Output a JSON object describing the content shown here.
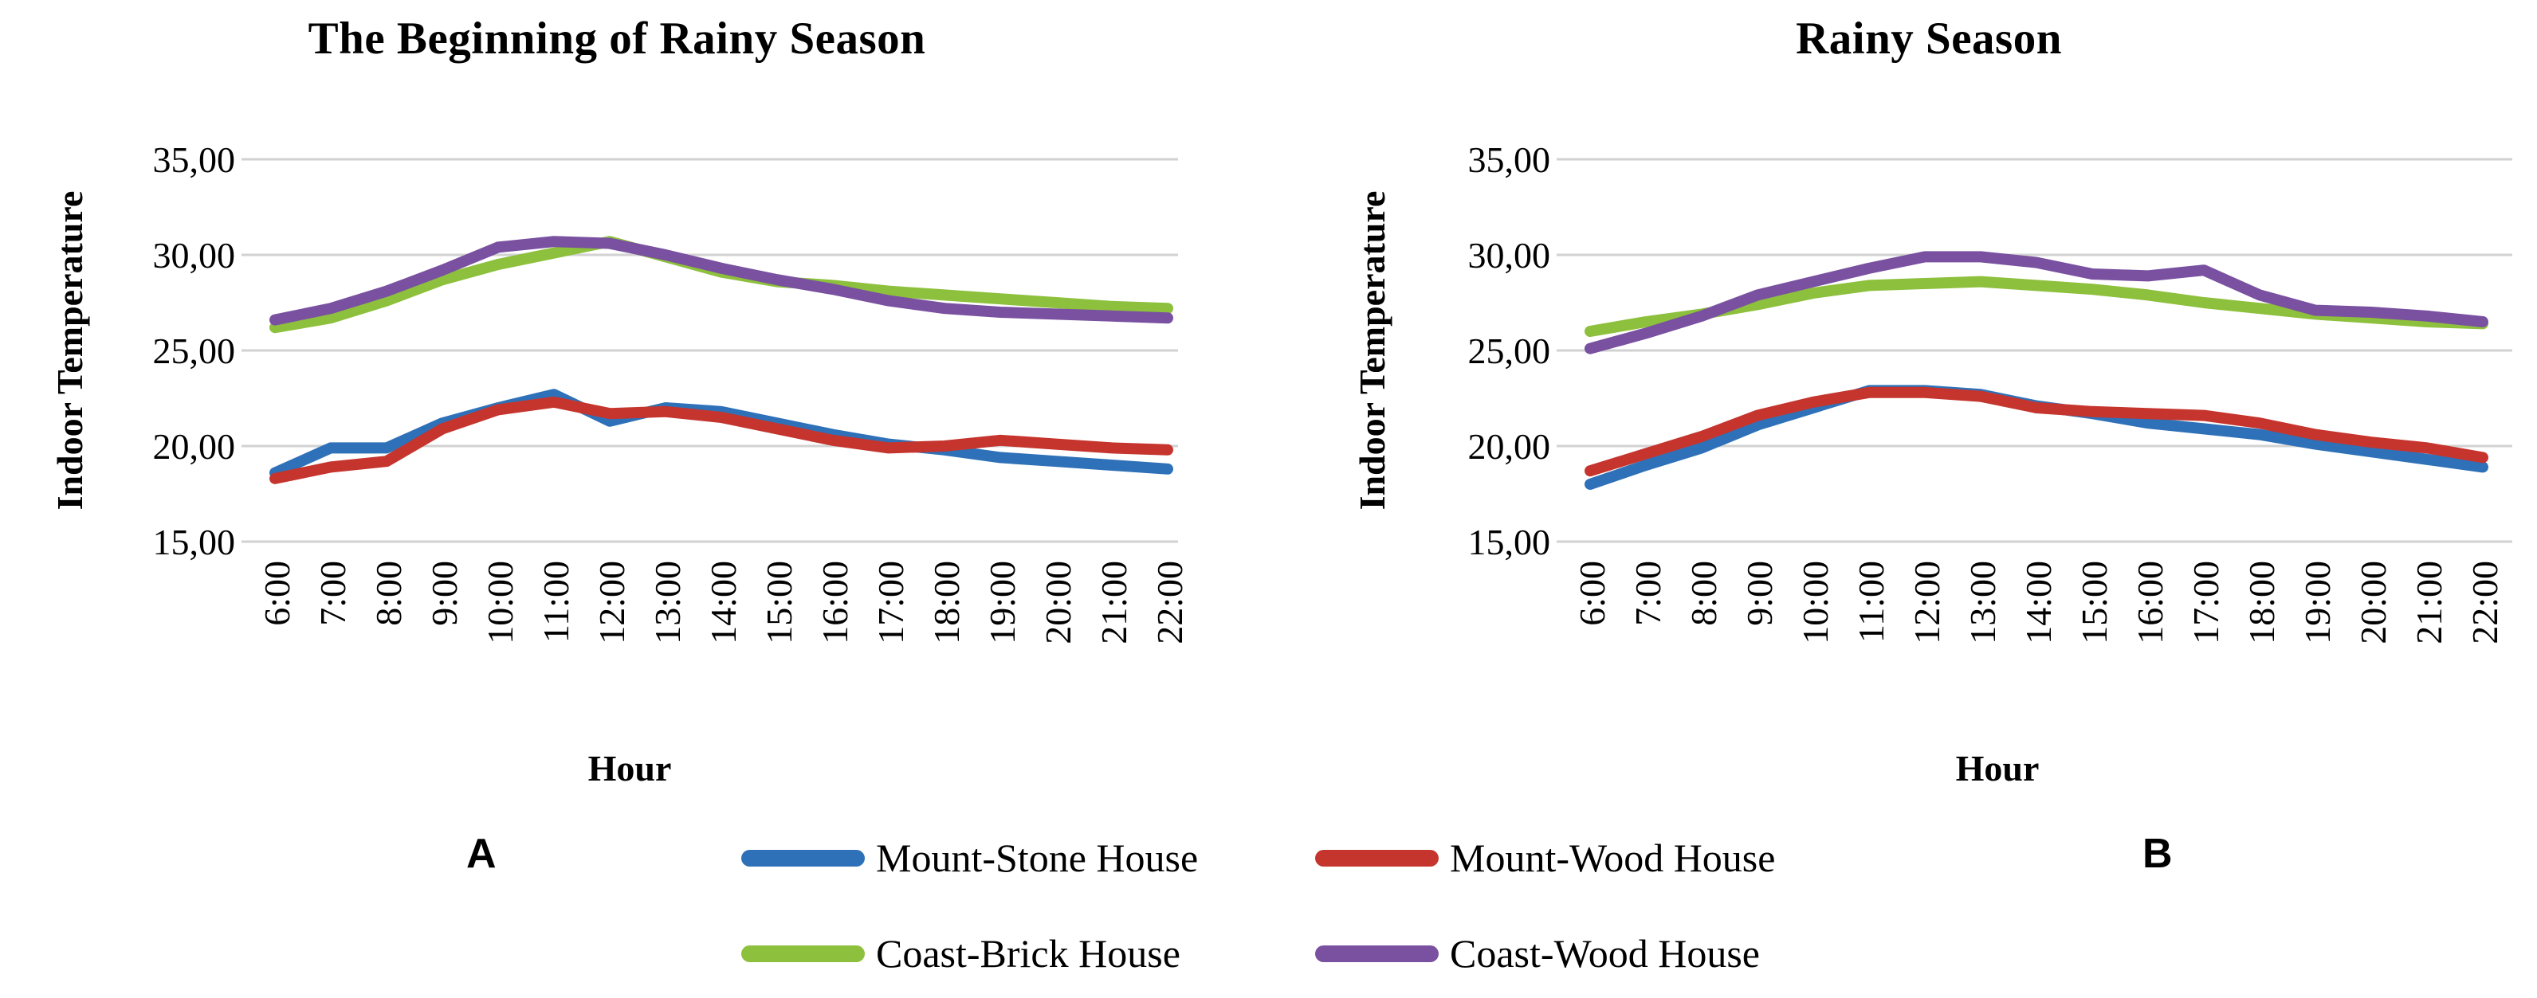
{
  "colors": {
    "mount_stone_blue": "#2e71b8",
    "mount_wood_red": "#c5352e",
    "coast_brick_green": "#8dc03c",
    "coast_wood_purple": "#7951a0",
    "gridline": "#d2d2d2",
    "text": "#000000"
  },
  "panels": {
    "a": "A",
    "b": "B"
  },
  "legend": {
    "position": "bottom-center, shared, two rows",
    "items": [
      {
        "label": "Mount-Stone House",
        "color": "#2e71b8"
      },
      {
        "label": "Mount-Wood House",
        "color": "#c5352e"
      },
      {
        "label": "Coast-Brick House",
        "color": "#8dc03c"
      },
      {
        "label": "Coast-Wood House",
        "color": "#7951a0"
      }
    ]
  },
  "chart_data": [
    {
      "type": "line",
      "title": "The Beginning of Rainy Season",
      "xlabel": "Hour",
      "ylabel": "Indoor Temperature",
      "ylim": [
        15,
        35
      ],
      "yticks": [
        "35,00",
        "30,00",
        "25,00",
        "20,00",
        "15,00"
      ],
      "grid": true,
      "categories": [
        "6:00",
        "7:00",
        "8:00",
        "9:00",
        "10:00",
        "11:00",
        "12:00",
        "13:00",
        "14:00",
        "15:00",
        "16:00",
        "17:00",
        "18:00",
        "19:00",
        "20:00",
        "21:00",
        "22:00"
      ],
      "series": [
        {
          "name": "Mount-Stone House",
          "color": "#2e71b8",
          "values": [
            18.6,
            19.9,
            19.9,
            21.2,
            22.0,
            22.7,
            21.3,
            22.0,
            21.8,
            21.2,
            20.6,
            20.1,
            19.8,
            19.4,
            19.2,
            19.0,
            18.8
          ]
        },
        {
          "name": "Mount-Wood House",
          "color": "#c5352e",
          "values": [
            18.3,
            18.9,
            19.2,
            20.9,
            21.9,
            22.3,
            21.7,
            21.8,
            21.5,
            20.9,
            20.3,
            19.9,
            20.0,
            20.3,
            20.1,
            19.9,
            19.8
          ]
        },
        {
          "name": "Coast-Brick House",
          "color": "#8dc03c",
          "values": [
            26.2,
            26.7,
            27.6,
            28.7,
            29.5,
            30.1,
            30.7,
            29.9,
            29.1,
            28.6,
            28.4,
            28.1,
            27.9,
            27.7,
            27.5,
            27.3,
            27.2
          ]
        },
        {
          "name": "Coast-Wood House",
          "color": "#7951a0",
          "values": [
            26.6,
            27.2,
            28.1,
            29.2,
            30.4,
            30.7,
            30.6,
            30.0,
            29.3,
            28.7,
            28.2,
            27.6,
            27.2,
            27.0,
            26.9,
            26.8,
            26.7
          ]
        }
      ]
    },
    {
      "type": "line",
      "title": "Rainy Season",
      "xlabel": "Hour",
      "ylabel": "Indoor Temperature",
      "ylim": [
        15,
        35
      ],
      "yticks": [
        "35,00",
        "30,00",
        "25,00",
        "20,00",
        "15,00"
      ],
      "grid": true,
      "categories": [
        "6:00",
        "7:00",
        "8:00",
        "9:00",
        "10:00",
        "11:00",
        "12:00",
        "13:00",
        "14:00",
        "15:00",
        "16:00",
        "17:00",
        "18:00",
        "19:00",
        "20:00",
        "21:00",
        "22:00"
      ],
      "series": [
        {
          "name": "Mount-Stone House",
          "color": "#2e71b8",
          "values": [
            18.0,
            19.0,
            19.9,
            21.1,
            22.0,
            22.9,
            22.9,
            22.7,
            22.1,
            21.7,
            21.2,
            20.9,
            20.6,
            20.1,
            19.7,
            19.3,
            18.9
          ]
        },
        {
          "name": "Mount-Wood House",
          "color": "#c5352e",
          "values": [
            18.7,
            19.6,
            20.5,
            21.6,
            22.3,
            22.8,
            22.8,
            22.6,
            22.0,
            21.8,
            21.7,
            21.6,
            21.2,
            20.6,
            20.2,
            19.9,
            19.4
          ]
        },
        {
          "name": "Coast-Brick House",
          "color": "#8dc03c",
          "values": [
            26.0,
            26.5,
            26.9,
            27.4,
            28.0,
            28.4,
            28.5,
            28.6,
            28.4,
            28.2,
            27.9,
            27.5,
            27.2,
            26.9,
            26.7,
            26.5,
            26.4
          ]
        },
        {
          "name": "Coast-Wood House",
          "color": "#7951a0",
          "values": [
            25.1,
            25.9,
            26.8,
            27.9,
            28.6,
            29.3,
            29.9,
            29.9,
            29.6,
            29.0,
            28.9,
            29.2,
            27.9,
            27.1,
            27.0,
            26.8,
            26.5
          ]
        }
      ]
    }
  ]
}
